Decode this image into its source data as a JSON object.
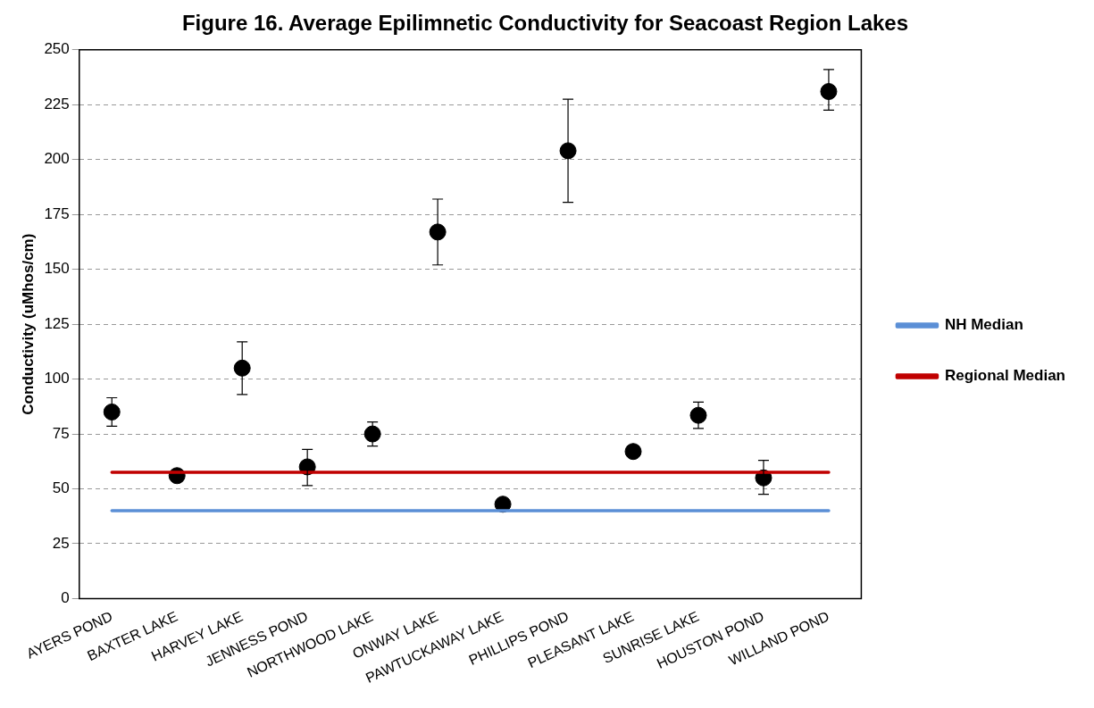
{
  "chart_data": {
    "type": "scatter",
    "title": "Figure 16. Average Epilimnetic Conductivity for Seacoast Region Lakes",
    "ylabel": "Conductivity (uMhos/cm)",
    "categories": [
      "AYERS POND",
      "BAXTER LAKE",
      "HARVEY LAKE",
      "JENNESS POND",
      "NORTHWOOD LAKE",
      "ONWAY LAKE",
      "PAWTUCKAWAY LAKE",
      "PHILLIPS POND",
      "PLEASANT LAKE",
      "SUNRISE LAKE",
      "HOUSTON POND",
      "WILLAND POND"
    ],
    "series": [
      {
        "color": "#000000",
        "values": [
          85,
          56,
          105,
          60,
          75,
          167,
          43,
          204,
          67,
          83.5,
          55,
          231
        ],
        "errors": [
          [
            78.5,
            91.5
          ],
          null,
          [
            93,
            117
          ],
          [
            51.5,
            68
          ],
          [
            69.5,
            80.5
          ],
          [
            152,
            182
          ],
          null,
          [
            180.5,
            227.5
          ],
          null,
          [
            77.5,
            89.5
          ],
          [
            47.5,
            63
          ],
          [
            222.5,
            241
          ]
        ]
      },
      {
        "type": "line",
        "marker": "none",
        "name": "NH Median",
        "color": "#5b8fd6",
        "values": [
          40,
          40,
          40,
          40,
          40,
          40,
          40,
          40,
          40,
          40,
          40,
          40
        ]
      },
      {
        "type": "line",
        "marker": "none",
        "name": "Regional Median",
        "color": "#c00000",
        "values": [
          57.5,
          57.5,
          57.5,
          57.5,
          57.5,
          57.5,
          57.5,
          57.5,
          57.5,
          57.5,
          57.5,
          57.5
        ]
      }
    ],
    "ylim": [
      0,
      250
    ],
    "yticks": [
      0,
      25,
      50,
      75,
      100,
      125,
      150,
      175,
      200,
      225,
      250
    ],
    "grid": "y",
    "legend": "right",
    "marker": "circle"
  }
}
